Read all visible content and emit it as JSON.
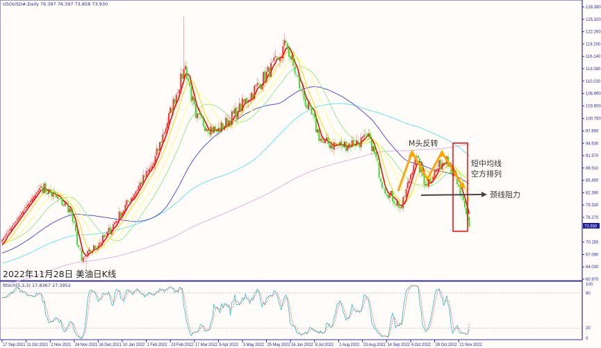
{
  "header": {
    "symbol_line": "USOUSD#,Daily  76.397 76.397 73.858 73.930"
  },
  "stoch_header": "Stoch(5,3,3) 17.8367 27.3952",
  "caption": "2022年11月28日  美油日K线",
  "annotations": {
    "pattern": "M头反转",
    "ma_line1": "短中均线",
    "ma_line2": "空方排列",
    "neckline": "颈线阻力"
  },
  "current_price_label": "73.930",
  "colors": {
    "bull": "#ff2020",
    "bear": "#20e020",
    "ma5": "#ff0000",
    "ma10": "#ffd700",
    "ma20": "#ffff80",
    "ma30": "#90ee90",
    "ma60": "#5050e0",
    "ma120": "#60e8f0",
    "ma250": "#e0b0e0",
    "stoch_main": "#20c0c0",
    "stoch_signal": "#ff4040",
    "annotation_arrow": "#ffa500",
    "box": "#ff0000",
    "axis": "#2a2aa0"
  },
  "chart_data": [
    {
      "type": "candlestick",
      "title": "",
      "ylim": [
        60.97,
        128.38
      ],
      "y_ticks": [
        "128.380",
        "125.320",
        "122.260",
        "119.200",
        "116.140",
        "113.080",
        "110.020",
        "106.960",
        "103.900",
        "100.750",
        "97.690",
        "94.630",
        "91.570",
        "88.510",
        "85.450",
        "82.390",
        "79.330",
        "76.270",
        "70.150",
        "67.090",
        "64.030",
        "60.970"
      ],
      "x_ticks": [
        "17 Sep 2021",
        "11 Oct 2021",
        "2 Nov 2021",
        "24 Nov 2021",
        "16 Dec 2021",
        "10 Jan 2022",
        "1 Feb 2022",
        "23 Feb 2022",
        "17 Mar 2022",
        "8 Apr 2022",
        "3 May 2022",
        "25 May 2022",
        "16 Jun 2022",
        "8 Jul 2022",
        "1 Aug 2022",
        "23 Aug 2022",
        "14 Sep 2022",
        "6 Oct 2022",
        "28 Oct 2022",
        "21 Nov 2022"
      ],
      "last_bar": {
        "open": 76.397,
        "high": 76.397,
        "low": 73.858,
        "close": 73.93
      },
      "close_path": [
        {
          "date": "2021-09-17",
          "close": 70.7
        },
        {
          "date": "2021-10-25",
          "close": 84.0
        },
        {
          "date": "2021-11-19",
          "close": 78.5
        },
        {
          "date": "2021-12-01",
          "close": 65.6
        },
        {
          "date": "2021-12-23",
          "close": 71.6
        },
        {
          "date": "2022-02-07",
          "close": 89.7
        },
        {
          "date": "2022-03-08",
          "close": 113.8
        },
        {
          "date": "2022-03-17",
          "close": 100.9
        },
        {
          "date": "2022-04-06",
          "close": 97.4
        },
        {
          "date": "2022-04-26",
          "close": 102.6
        },
        {
          "date": "2022-06-03",
          "close": 116.0
        },
        {
          "date": "2022-06-09",
          "close": 119.5
        },
        {
          "date": "2022-06-23",
          "close": 107.7
        },
        {
          "date": "2022-07-13",
          "close": 94.8
        },
        {
          "date": "2022-08-01",
          "close": 94.0
        },
        {
          "date": "2022-08-26",
          "close": 95.7
        },
        {
          "date": "2022-09-08",
          "close": 83.7
        },
        {
          "date": "2022-09-26",
          "close": 78.5
        },
        {
          "date": "2022-10-07",
          "close": 91.4
        },
        {
          "date": "2022-10-18",
          "close": 84.5
        },
        {
          "date": "2022-11-07",
          "close": 91.4
        },
        {
          "date": "2022-11-16",
          "close": 84.5
        },
        {
          "date": "2022-11-28",
          "close": 73.93
        }
      ],
      "moving_averages": [
        5,
        10,
        20,
        30,
        60,
        120,
        250
      ],
      "grid": false
    },
    {
      "type": "line",
      "title": "Stoch(5,3,3)",
      "ylim": [
        0,
        100
      ],
      "y_ticks": [
        "100",
        "80",
        "20",
        "0"
      ],
      "levels": [
        80,
        20
      ],
      "current": {
        "main": 17.8367,
        "signal": 27.3952
      }
    }
  ]
}
